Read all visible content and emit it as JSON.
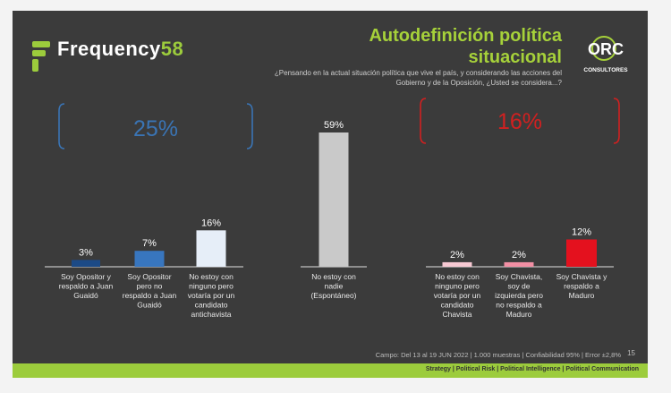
{
  "header": {
    "brand_name": "Frequency",
    "brand_number": "58",
    "title_line1": "Autodefinición política",
    "title_line2": "situacional",
    "subtitle": "¿Pensando en la actual situación política que vive el país, y considerando las acciones del Gobierno y de la Oposición, ¿Usted se considera...?",
    "orc_logo_text": "ORC",
    "orc_logo_sub": "CONSULTORES"
  },
  "groups": {
    "opposition_pct": "25%",
    "chavista_pct": "16%",
    "opposition_color": "#3a74b4",
    "chavista_color": "#d12020"
  },
  "chart_data": {
    "type": "bar",
    "categories": [
      "Soy Opositor y respaldo a Juan Guaidó",
      "Soy Opositor pero no respaldo a Juan Guaidó",
      "No estoy con ninguno pero votaría por un candidato antichavista",
      "No estoy con nadie (Espontáneo)",
      "No estoy con ninguno pero votaría por un candidato Chavista",
      "Soy Chavista, soy de izquierda pero no respaldo a Maduro",
      "Soy Chavista y respaldo a Maduro"
    ],
    "values": [
      3,
      7,
      16,
      59,
      2,
      2,
      12
    ],
    "data_labels": [
      "3%",
      "7%",
      "16%",
      "59%",
      "2%",
      "2%",
      "12%"
    ],
    "colors": [
      "#1c4a86",
      "#3876bf",
      "#e6eef8",
      "#c9c9c9",
      "#f7c9d3",
      "#f28fa4",
      "#e4111e"
    ],
    "ylim": [
      0,
      59
    ]
  },
  "footer": {
    "note": "Campo: Del 13 al 19 JUN 2022 | 1.000 muestras | Confiabilidad 95% | Error ±2,8%",
    "page_number": "15",
    "tagline": "Strategy | Political Risk | Political Intelligence | Political Communication"
  }
}
